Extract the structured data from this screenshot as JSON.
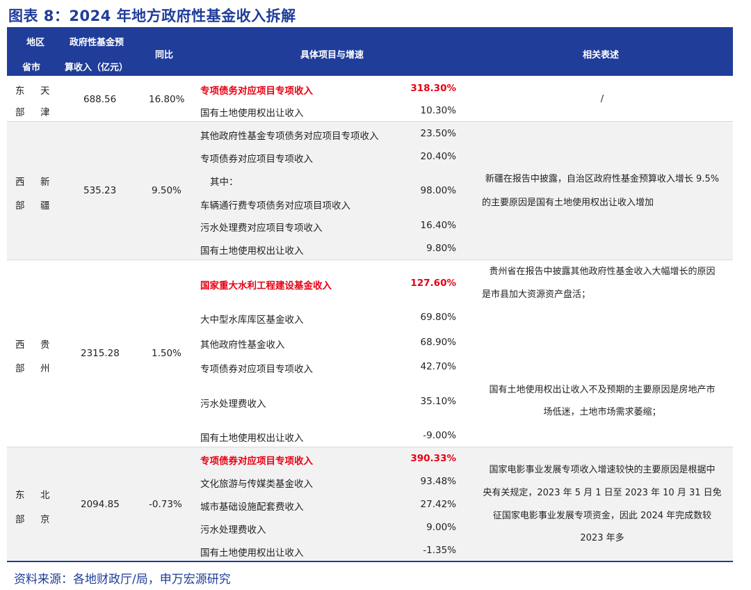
{
  "title": "图表 8：2024 年地方政府性基金收入拆解",
  "header": {
    "region": "地区",
    "province": "省市",
    "budget_line1": "政府性基金预",
    "budget_line2": "算收入（亿元）",
    "yoy": "同比",
    "items": "具体项目与增速",
    "desc": "相关表述"
  },
  "rows": [
    {
      "region": [
        "东",
        "部"
      ],
      "province": [
        "天",
        "津"
      ],
      "budget": "688.56",
      "yoy": "16.80%",
      "items": [
        {
          "name": "专项债务对应项目专项收入",
          "rate": "318.30%",
          "highlight": true
        },
        {
          "name": "国有土地使用权出让收入",
          "rate": "10.30%",
          "highlight": false
        }
      ],
      "desc": [
        "/"
      ]
    },
    {
      "region": [
        "西",
        "部"
      ],
      "province": [
        "新",
        "疆"
      ],
      "budget": "535.23",
      "yoy": "9.50%",
      "items": [
        {
          "name": "其他政府性基金专项债务对应项目专项收入",
          "rate": "23.50%",
          "highlight": false
        },
        {
          "name": "专项债券对应项目专项收入",
          "rate": "20.40%",
          "highlight": false
        },
        {
          "name": "其中：",
          "rate": "",
          "highlight": false
        },
        {
          "name": "车辆通行费专项债务对应项目项收入",
          "rate": "98.00%",
          "highlight": false
        },
        {
          "name": "污水处理费对应项目专项收入",
          "rate": "16.40%",
          "highlight": false
        },
        {
          "name": "国有土地使用权出让收入",
          "rate": "9.80%",
          "highlight": false
        }
      ],
      "desc": [
        "新疆在报告中披露，自治区政府性基金预算收入增长 9.5%",
        "的主要原因是国有土地使用权出让收入增加"
      ]
    },
    {
      "region": [
        "西",
        "部"
      ],
      "province": [
        "贵",
        "州"
      ],
      "budget": "2315.28",
      "yoy": "1.50%",
      "items": [
        {
          "name": "国家重大水利工程建设基金收入",
          "rate": "127.60%",
          "highlight": true
        },
        {
          "name": "大中型水库库区基金收入",
          "rate": "69.80%",
          "highlight": false
        },
        {
          "name": "其他政府性基金收入",
          "rate": "68.90%",
          "highlight": false
        },
        {
          "name": "专项债券对应项目专项收入",
          "rate": "42.70%",
          "highlight": false
        },
        {
          "name": "污水处理费收入",
          "rate": "35.10%",
          "highlight": false
        },
        {
          "name": "国有土地使用权出让收入",
          "rate": "-9.00%",
          "highlight": false
        }
      ],
      "desc": [
        "贵州省在报告中披露其他政府性基金收入大幅增长的原因",
        "是市县加大资源资产盘活；"
      ],
      "desc2": [
        "国有土地使用权出让收入不及预期的主要原因是房地产市",
        "场低迷，土地市场需求萎缩；"
      ]
    },
    {
      "region": [
        "东",
        "部"
      ],
      "province": [
        "北",
        "京"
      ],
      "budget": "2094.85",
      "yoy": "-0.73%",
      "items": [
        {
          "name": "专项债券对应项目专项收入",
          "rate": "390.33%",
          "highlight": true
        },
        {
          "name": "文化旅游与传媒类基金收入",
          "rate": "93.48%",
          "highlight": false
        },
        {
          "name": "城市基础设施配套费收入",
          "rate": "27.42%",
          "highlight": false
        },
        {
          "name": "污水处理费收入",
          "rate": "9.00%",
          "highlight": false
        },
        {
          "name": "国有土地使用权出让收入",
          "rate": "-1.35%",
          "highlight": false
        }
      ],
      "desc": [
        "国家电影事业发展专项收入增速较快的主要原因是根据中",
        "央有关规定，2023 年 5 月 1 日至 2023 年 10 月 31 日免",
        "征国家电影事业发展专项资金，因此 2024 年完成数较",
        "2023 年多"
      ]
    }
  ],
  "source": "资料来源：各地财政厅/局，申万宏源研究"
}
